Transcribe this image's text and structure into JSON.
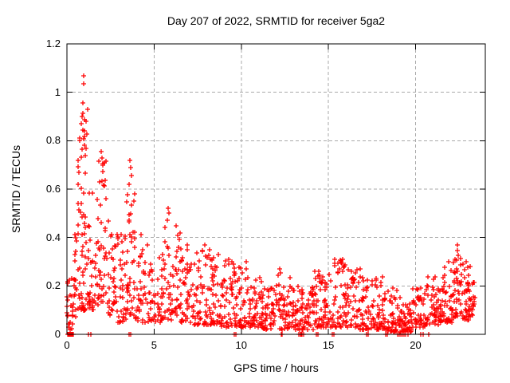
{
  "chart_data": {
    "type": "scatter",
    "title": "Day 207 of 2022, SRMTID for receiver 5ga2",
    "xlabel": "GPS time / hours",
    "ylabel": "SRMTID / TECUs",
    "xlim": [
      0,
      24
    ],
    "ylim": [
      0,
      1.2
    ],
    "xtick_values": [
      0,
      5,
      10,
      15,
      20
    ],
    "xtick_labels": [
      "0",
      "5",
      "10",
      "15",
      "20"
    ],
    "ytick_values": [
      0,
      0.2,
      0.4,
      0.6,
      0.8,
      1,
      1.2
    ],
    "ytick_labels": [
      "0",
      "0.2",
      "0.4",
      "0.6",
      "0.8",
      "1",
      "1.2"
    ],
    "grid": "dashed",
    "legend": "none",
    "marker": "plus",
    "colors": {
      "marker": "#ff0000",
      "grid": "#a9a9a9",
      "frame": "#000000",
      "text": "#000000",
      "background": "#ffffff"
    },
    "seed": 207,
    "skew": 1.8,
    "x_quantum_hours": 0.02,
    "bands": [
      {
        "x0": 0.0,
        "x1": 0.3,
        "lo": 0.02,
        "hi": 0.25,
        "n": 20
      },
      {
        "x0": 0.3,
        "x1": 0.6,
        "lo": 0.06,
        "hi": 0.45,
        "n": 22
      },
      {
        "x0": 0.6,
        "x1": 0.9,
        "lo": 0.1,
        "hi": 0.9,
        "n": 30
      },
      {
        "x0": 0.9,
        "x1": 1.2,
        "lo": 0.1,
        "hi": 0.95,
        "n": 35
      },
      {
        "x0": 1.2,
        "x1": 1.7,
        "lo": 0.1,
        "hi": 0.62,
        "n": 35
      },
      {
        "x0": 1.7,
        "x1": 2.3,
        "lo": 0.12,
        "hi": 0.72,
        "n": 45
      },
      {
        "x0": 2.3,
        "x1": 2.9,
        "lo": 0.08,
        "hi": 0.5,
        "n": 35
      },
      {
        "x0": 2.9,
        "x1": 3.4,
        "lo": 0.05,
        "hi": 0.42,
        "n": 32
      },
      {
        "x0": 3.4,
        "x1": 3.9,
        "lo": 0.08,
        "hi": 0.68,
        "n": 40
      },
      {
        "x0": 3.9,
        "x1": 4.6,
        "lo": 0.05,
        "hi": 0.42,
        "n": 38
      },
      {
        "x0": 4.6,
        "x1": 5.4,
        "lo": 0.05,
        "hi": 0.33,
        "n": 42
      },
      {
        "x0": 5.4,
        "x1": 6.0,
        "lo": 0.06,
        "hi": 0.48,
        "n": 36
      },
      {
        "x0": 6.0,
        "x1": 6.5,
        "lo": 0.08,
        "hi": 0.45,
        "n": 30
      },
      {
        "x0": 6.5,
        "x1": 7.2,
        "lo": 0.05,
        "hi": 0.38,
        "n": 42
      },
      {
        "x0": 7.2,
        "x1": 8.0,
        "lo": 0.04,
        "hi": 0.35,
        "n": 48
      },
      {
        "x0": 8.0,
        "x1": 8.8,
        "lo": 0.04,
        "hi": 0.33,
        "n": 48
      },
      {
        "x0": 8.8,
        "x1": 9.6,
        "lo": 0.03,
        "hi": 0.31,
        "n": 48
      },
      {
        "x0": 9.6,
        "x1": 10.4,
        "lo": 0.03,
        "hi": 0.28,
        "n": 48
      },
      {
        "x0": 10.4,
        "x1": 11.2,
        "lo": 0.03,
        "hi": 0.24,
        "n": 48
      },
      {
        "x0": 11.2,
        "x1": 12.0,
        "lo": 0.02,
        "hi": 0.2,
        "n": 48
      },
      {
        "x0": 12.0,
        "x1": 12.8,
        "lo": 0.02,
        "hi": 0.26,
        "n": 48
      },
      {
        "x0": 12.8,
        "x1": 13.6,
        "lo": 0.02,
        "hi": 0.21,
        "n": 48
      },
      {
        "x0": 13.6,
        "x1": 14.4,
        "lo": 0.02,
        "hi": 0.25,
        "n": 48
      },
      {
        "x0": 14.4,
        "x1": 15.2,
        "lo": 0.03,
        "hi": 0.27,
        "n": 48
      },
      {
        "x0": 15.2,
        "x1": 16.0,
        "lo": 0.03,
        "hi": 0.31,
        "n": 48
      },
      {
        "x0": 16.0,
        "x1": 16.8,
        "lo": 0.03,
        "hi": 0.27,
        "n": 48
      },
      {
        "x0": 16.8,
        "x1": 17.6,
        "lo": 0.02,
        "hi": 0.25,
        "n": 48
      },
      {
        "x0": 17.6,
        "x1": 18.4,
        "lo": 0.02,
        "hi": 0.24,
        "n": 48
      },
      {
        "x0": 18.4,
        "x1": 19.2,
        "lo": 0.01,
        "hi": 0.2,
        "n": 48
      },
      {
        "x0": 19.2,
        "x1": 19.8,
        "lo": 0.01,
        "hi": 0.13,
        "n": 40
      },
      {
        "x0": 19.8,
        "x1": 20.6,
        "lo": 0.03,
        "hi": 0.2,
        "n": 48
      },
      {
        "x0": 20.6,
        "x1": 21.4,
        "lo": 0.04,
        "hi": 0.24,
        "n": 48
      },
      {
        "x0": 21.4,
        "x1": 22.1,
        "lo": 0.05,
        "hi": 0.3,
        "n": 48
      },
      {
        "x0": 22.1,
        "x1": 22.7,
        "lo": 0.07,
        "hi": 0.34,
        "n": 45
      },
      {
        "x0": 22.7,
        "x1": 23.2,
        "lo": 0.06,
        "hi": 0.3,
        "n": 40
      },
      {
        "x0": 23.2,
        "x1": 23.4,
        "lo": 0.08,
        "hi": 0.24,
        "n": 15
      }
    ],
    "peaks": [
      [
        0.96,
        1.068
      ],
      [
        0.96,
        1.035
      ],
      [
        0.9,
        0.955
      ],
      [
        0.88,
        0.9
      ],
      [
        0.8,
        0.87
      ],
      [
        0.75,
        0.8
      ],
      [
        1.0,
        0.78
      ],
      [
        1.05,
        0.74
      ],
      [
        0.65,
        0.72
      ],
      [
        1.95,
        0.755
      ],
      [
        2.0,
        0.73
      ],
      [
        2.05,
        0.7
      ],
      [
        3.62,
        0.72
      ],
      [
        3.66,
        0.69
      ],
      [
        3.7,
        0.655
      ],
      [
        3.58,
        0.62
      ],
      [
        5.8,
        0.52
      ],
      [
        5.83,
        0.5
      ],
      [
        5.78,
        0.47
      ],
      [
        6.25,
        0.45
      ],
      [
        7.9,
        0.37
      ],
      [
        8.2,
        0.35
      ],
      [
        8.7,
        0.33
      ],
      [
        9.3,
        0.31
      ],
      [
        10.3,
        0.3
      ],
      [
        12.2,
        0.27
      ],
      [
        14.2,
        0.26
      ],
      [
        15.8,
        0.31
      ],
      [
        16.8,
        0.27
      ],
      [
        22.42,
        0.37
      ],
      [
        22.4,
        0.345
      ],
      [
        22.46,
        0.325
      ],
      [
        22.9,
        0.3
      ]
    ],
    "zeros": [
      0.06,
      0.1,
      0.14,
      0.18,
      0.22,
      0.26,
      0.3,
      0.34,
      0.38,
      1.25,
      1.35,
      3.55,
      3.65,
      9.6,
      9.7,
      12.3,
      12.34,
      13.32,
      13.38,
      13.44,
      13.5,
      13.56,
      14.3,
      14.4,
      15.22,
      15.3,
      17.2,
      17.28,
      18.27,
      18.37,
      18.95,
      19.05,
      19.15,
      19.25,
      19.35,
      19.45,
      19.55,
      20.3,
      20.42,
      20.75
    ]
  }
}
